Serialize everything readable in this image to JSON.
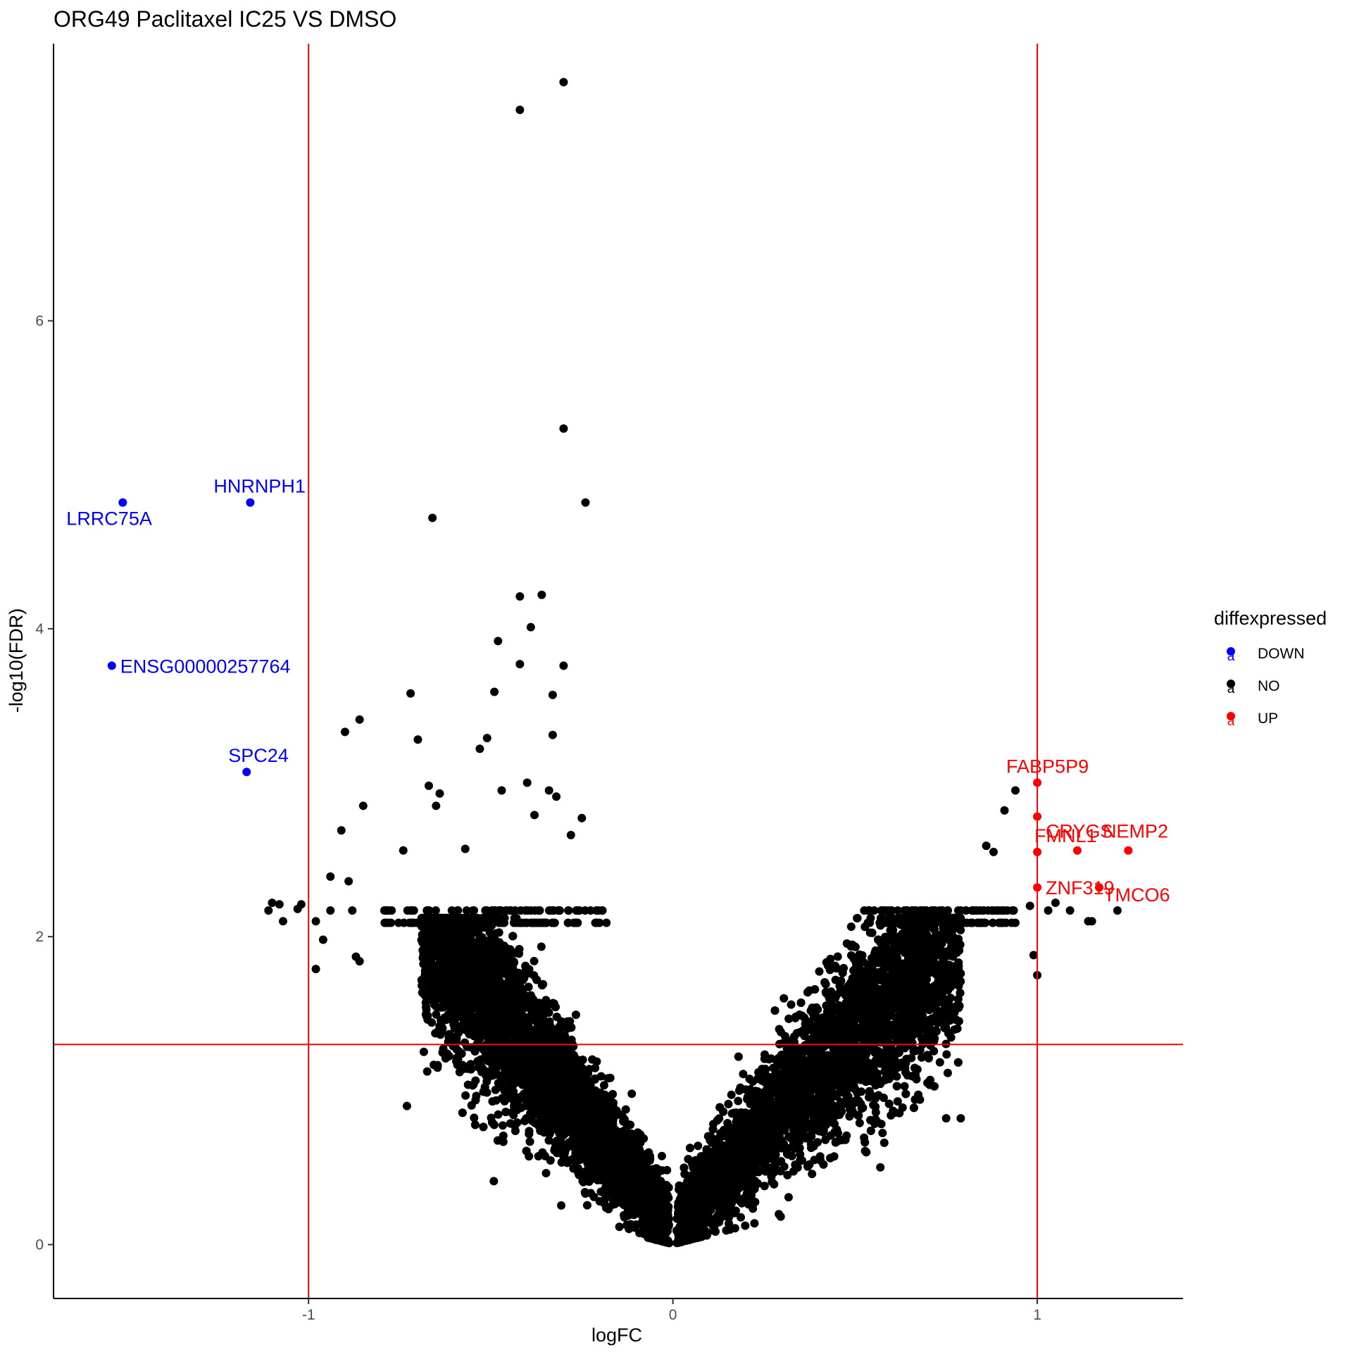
{
  "chart_data": {
    "type": "scatter",
    "title": "ORG49 Paclitaxel IC25 VS DMSO",
    "xlabel": "logFC",
    "ylabel": "-log10(FDR)",
    "xlim": [
      -1.7,
      1.4
    ],
    "ylim": [
      -0.35,
      7.8
    ],
    "x_ticks": [
      -1,
      0,
      1
    ],
    "x_tick_labels": [
      "-1",
      "0",
      "1"
    ],
    "y_ticks": [
      0,
      2,
      4,
      6
    ],
    "y_tick_labels": [
      "0",
      "2",
      "4",
      "6"
    ],
    "grid": false,
    "reference_lines": {
      "vertical_x": [
        -1,
        1
      ],
      "horizontal_y": [
        1.3
      ],
      "color": "#ff0000"
    },
    "legend": {
      "title": "diffexpressed",
      "position": "right",
      "glyph": "a",
      "entries": [
        {
          "label": "DOWN",
          "color": "#0000ff"
        },
        {
          "label": "NO",
          "color": "#000000"
        },
        {
          "label": "UP",
          "color": "#ff0000"
        }
      ]
    },
    "series": [
      {
        "name": "DOWN",
        "color": "#0000ff",
        "points": [
          {
            "x": -1.51,
            "y": 4.82,
            "label": "LRRC75A"
          },
          {
            "x": -1.16,
            "y": 4.82,
            "label": "HNRNPH1"
          },
          {
            "x": -1.54,
            "y": 3.76,
            "label": "ENSG00000257764"
          },
          {
            "x": -1.17,
            "y": 3.07,
            "label": "SPC24"
          }
        ]
      },
      {
        "name": "UP",
        "color": "#ff0000",
        "points": [
          {
            "x": 1.0,
            "y": 3.0,
            "label": "FABP5P9"
          },
          {
            "x": 1.0,
            "y": 2.78,
            "label": "CRYGS"
          },
          {
            "x": 1.11,
            "y": 2.56,
            "label": "NEMP2"
          },
          {
            "x": 1.0,
            "y": 2.55,
            "label": "FMNL1"
          },
          {
            "x": 1.25,
            "y": 2.56,
            "label": ""
          },
          {
            "x": 1.0,
            "y": 2.32,
            "label": "ZNF319"
          },
          {
            "x": 1.17,
            "y": 2.32,
            "label": "TMCO6"
          }
        ]
      },
      {
        "name": "NO",
        "color": "#000000",
        "highlight_points": [
          {
            "x": -0.3,
            "y": 7.55
          },
          {
            "x": -0.42,
            "y": 7.37
          },
          {
            "x": -0.3,
            "y": 5.3
          },
          {
            "x": -0.24,
            "y": 4.82
          },
          {
            "x": -0.66,
            "y": 4.72
          },
          {
            "x": -0.42,
            "y": 4.21
          },
          {
            "x": -0.36,
            "y": 4.22
          },
          {
            "x": -0.39,
            "y": 4.01
          },
          {
            "x": -0.48,
            "y": 3.92
          },
          {
            "x": -0.42,
            "y": 3.77
          },
          {
            "x": -0.3,
            "y": 3.76
          },
          {
            "x": -0.72,
            "y": 3.58
          },
          {
            "x": -0.49,
            "y": 3.59
          },
          {
            "x": -0.33,
            "y": 3.57
          },
          {
            "x": -0.86,
            "y": 3.41
          },
          {
            "x": -0.9,
            "y": 3.33
          },
          {
            "x": -0.33,
            "y": 3.31
          },
          {
            "x": -0.7,
            "y": 3.28
          },
          {
            "x": -0.51,
            "y": 3.29
          },
          {
            "x": -0.53,
            "y": 3.22
          },
          {
            "x": -0.67,
            "y": 2.98
          },
          {
            "x": -0.4,
            "y": 3.0
          },
          {
            "x": -0.47,
            "y": 2.95
          },
          {
            "x": -0.34,
            "y": 2.95
          },
          {
            "x": -0.32,
            "y": 2.91
          },
          {
            "x": -0.64,
            "y": 2.93
          },
          {
            "x": -0.85,
            "y": 2.85
          },
          {
            "x": -0.65,
            "y": 2.85
          },
          {
            "x": -0.38,
            "y": 2.79
          },
          {
            "x": -0.25,
            "y": 2.77
          },
          {
            "x": -0.91,
            "y": 2.69
          },
          {
            "x": -0.28,
            "y": 2.66
          },
          {
            "x": -0.74,
            "y": 2.56
          },
          {
            "x": -0.57,
            "y": 2.57
          },
          {
            "x": -0.94,
            "y": 2.39
          },
          {
            "x": -0.89,
            "y": 2.36
          },
          {
            "x": -1.1,
            "y": 2.22
          },
          {
            "x": -1.08,
            "y": 2.21
          },
          {
            "x": -0.94,
            "y": 2.17
          },
          {
            "x": -0.88,
            "y": 2.17
          },
          {
            "x": -1.02,
            "y": 2.21
          },
          {
            "x": -1.03,
            "y": 2.18
          },
          {
            "x": -1.11,
            "y": 2.17
          },
          {
            "x": -1.07,
            "y": 2.1
          },
          {
            "x": -0.98,
            "y": 2.1
          },
          {
            "x": -0.96,
            "y": 1.98
          },
          {
            "x": -0.98,
            "y": 1.79
          },
          {
            "x": -0.87,
            "y": 1.87
          },
          {
            "x": -0.86,
            "y": 1.84
          },
          {
            "x": -0.73,
            "y": 0.9
          },
          {
            "x": 0.94,
            "y": 2.95
          },
          {
            "x": 0.91,
            "y": 2.82
          },
          {
            "x": 1.03,
            "y": 2.17
          },
          {
            "x": 1.09,
            "y": 2.17
          },
          {
            "x": 1.22,
            "y": 2.17
          },
          {
            "x": 1.15,
            "y": 2.1
          },
          {
            "x": 1.14,
            "y": 2.1
          },
          {
            "x": 1.05,
            "y": 2.22
          },
          {
            "x": 0.98,
            "y": 2.2
          },
          {
            "x": 0.99,
            "y": 1.88
          },
          {
            "x": 1.0,
            "y": 1.75
          },
          {
            "x": 0.88,
            "y": 2.55
          },
          {
            "x": 0.86,
            "y": 2.59
          },
          {
            "x": 0.13,
            "y": 0.4
          },
          {
            "x": 0.18,
            "y": 0.42
          },
          {
            "x": 0.23,
            "y": 0.55
          },
          {
            "x": 0.38,
            "y": 0.9
          },
          {
            "x": -0.15,
            "y": 0.38
          },
          {
            "x": 0.75,
            "y": 0.82
          },
          {
            "x": 0.79,
            "y": 0.82
          },
          {
            "x": 0.53,
            "y": 1.28
          }
        ],
        "bulk_note": ""
      }
    ]
  }
}
